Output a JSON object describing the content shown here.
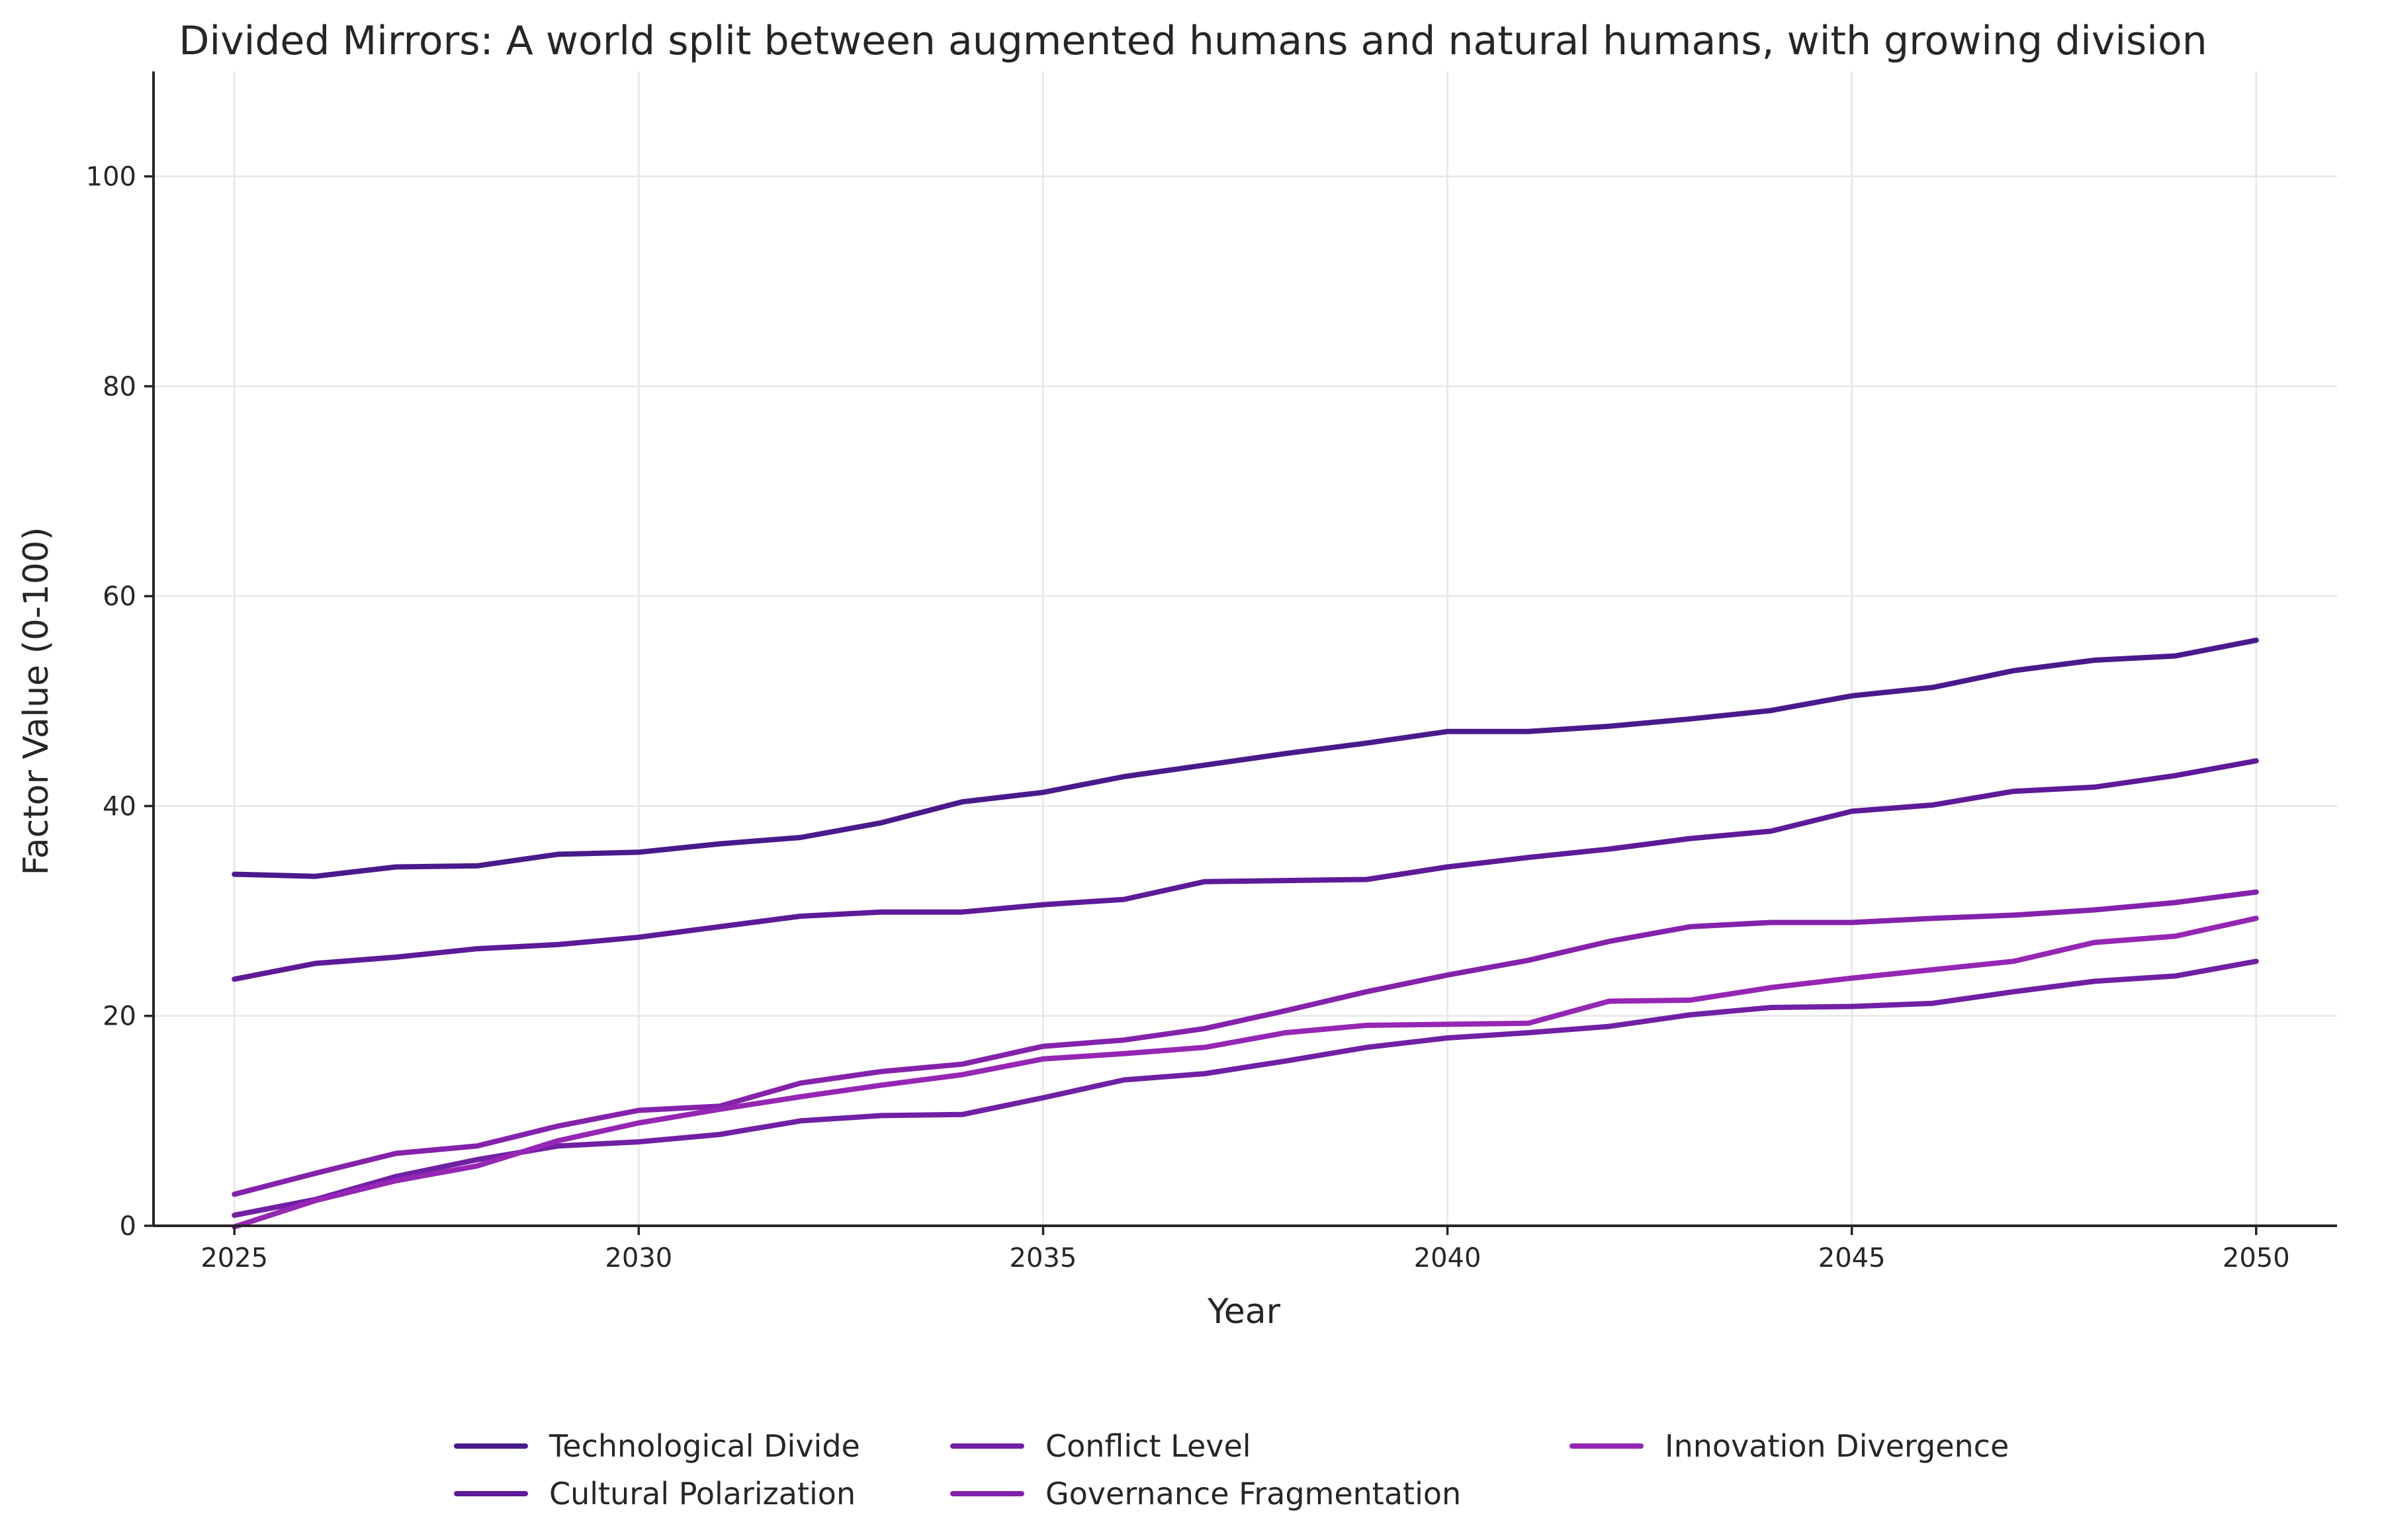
{
  "chart_data": {
    "type": "line",
    "title": "Divided Mirrors: A world split between augmented humans and natural humans, with growing division",
    "xlabel": "Year",
    "ylabel": "Factor Value (0-100)",
    "xlim": [
      2024,
      2051
    ],
    "ylim": [
      0,
      110
    ],
    "xticks": [
      2025,
      2030,
      2035,
      2040,
      2045,
      2050
    ],
    "yticks": [
      0,
      20,
      40,
      60,
      80,
      100
    ],
    "grid": true,
    "legend_position": "bottom-center",
    "x": [
      2025,
      2026,
      2027,
      2028,
      2029,
      2030,
      2031,
      2032,
      2033,
      2034,
      2035,
      2036,
      2037,
      2038,
      2039,
      2040,
      2041,
      2042,
      2043,
      2044,
      2045,
      2046,
      2047,
      2048,
      2049,
      2050
    ],
    "series": [
      {
        "name": "Technological Divide",
        "color": "#4a1a8c",
        "values": [
          33.5,
          33.3,
          34.2,
          34.3,
          35.4,
          35.6,
          36.4,
          37.0,
          38.4,
          40.4,
          41.3,
          42.8,
          43.9,
          45.0,
          46.0,
          47.1,
          47.1,
          47.6,
          48.3,
          49.1,
          50.5,
          51.3,
          52.9,
          53.9,
          54.3,
          55.8
        ]
      },
      {
        "name": "Cultural Polarization",
        "color": "#5e1a98",
        "values": [
          23.5,
          25.0,
          25.6,
          26.4,
          26.8,
          27.5,
          28.5,
          29.5,
          29.9,
          29.9,
          30.6,
          31.1,
          32.8,
          32.9,
          33.0,
          34.2,
          35.1,
          35.9,
          36.9,
          37.6,
          39.5,
          40.1,
          41.4,
          41.8,
          42.9,
          44.3
        ]
      },
      {
        "name": "Conflict Level",
        "color": "#7020a4",
        "values": [
          1.0,
          2.5,
          4.7,
          6.3,
          7.6,
          8.0,
          8.7,
          10.0,
          10.5,
          10.6,
          12.2,
          13.9,
          14.5,
          15.7,
          17.0,
          17.9,
          18.4,
          19.0,
          20.1,
          20.8,
          20.9,
          21.2,
          22.3,
          23.3,
          23.8,
          25.2
        ]
      },
      {
        "name": "Governance Fragmentation",
        "color": "#8422ac",
        "values": [
          3.0,
          5.0,
          6.9,
          7.6,
          9.5,
          11.0,
          11.4,
          13.6,
          14.7,
          15.4,
          17.1,
          17.7,
          18.8,
          20.5,
          22.3,
          23.9,
          25.3,
          27.1,
          28.5,
          28.9,
          28.9,
          29.3,
          29.6,
          30.1,
          30.8,
          31.8
        ]
      },
      {
        "name": "Innovation Divergence",
        "color": "#9626b4",
        "values": [
          -0.1,
          2.4,
          4.3,
          5.7,
          8.1,
          9.8,
          11.1,
          12.3,
          13.4,
          14.4,
          15.9,
          16.4,
          17.0,
          18.4,
          19.1,
          19.2,
          19.3,
          21.4,
          21.5,
          22.7,
          23.6,
          24.4,
          25.2,
          27.0,
          27.6,
          29.3
        ]
      }
    ]
  }
}
